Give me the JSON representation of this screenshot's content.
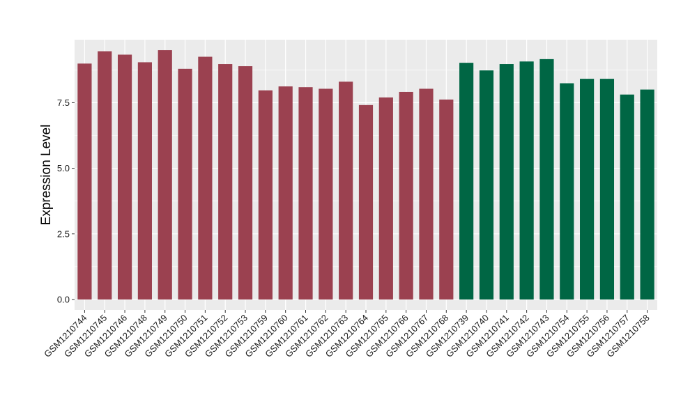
{
  "chart_data": {
    "type": "bar",
    "title": "",
    "xlabel": "",
    "ylabel": "Expression Level",
    "ylim": [
      -0.4,
      9.9
    ],
    "yticks": [
      0.0,
      2.5,
      5.0,
      7.5
    ],
    "ytick_labels": [
      "0.0",
      "2.5",
      "5.0",
      "7.5"
    ],
    "grid": true,
    "legend": "none",
    "panel_background": "#ebebeb",
    "grid_color": "#ffffff",
    "categories": [
      "GSM1210744",
      "GSM1210745",
      "GSM1210746",
      "GSM1210748",
      "GSM1210749",
      "GSM1210750",
      "GSM1210751",
      "GSM1210752",
      "GSM1210753",
      "GSM1210759",
      "GSM1210760",
      "GSM1210761",
      "GSM1210762",
      "GSM1210763",
      "GSM1210764",
      "GSM1210765",
      "GSM1210766",
      "GSM1210767",
      "GSM1210768",
      "GSM1210739",
      "GSM1210740",
      "GSM1210741",
      "GSM1210742",
      "GSM1210743",
      "GSM1210754",
      "GSM1210755",
      "GSM1210756",
      "GSM1210757",
      "GSM1210758"
    ],
    "values": [
      8.99,
      9.46,
      9.33,
      9.04,
      9.5,
      8.79,
      9.25,
      8.97,
      8.89,
      7.97,
      8.12,
      8.09,
      8.03,
      8.3,
      7.41,
      7.7,
      7.91,
      8.03,
      7.62,
      9.02,
      8.73,
      8.97,
      9.07,
      9.16,
      8.24,
      8.41,
      8.41,
      7.81,
      8.0
    ],
    "bar_colors": [
      "#9b4150",
      "#9b4150",
      "#9b4150",
      "#9b4150",
      "#9b4150",
      "#9b4150",
      "#9b4150",
      "#9b4150",
      "#9b4150",
      "#9b4150",
      "#9b4150",
      "#9b4150",
      "#9b4150",
      "#9b4150",
      "#9b4150",
      "#9b4150",
      "#9b4150",
      "#9b4150",
      "#9b4150",
      "#006644",
      "#006644",
      "#006644",
      "#006644",
      "#006644",
      "#006644",
      "#006644",
      "#006644",
      "#006644",
      "#006644"
    ]
  }
}
